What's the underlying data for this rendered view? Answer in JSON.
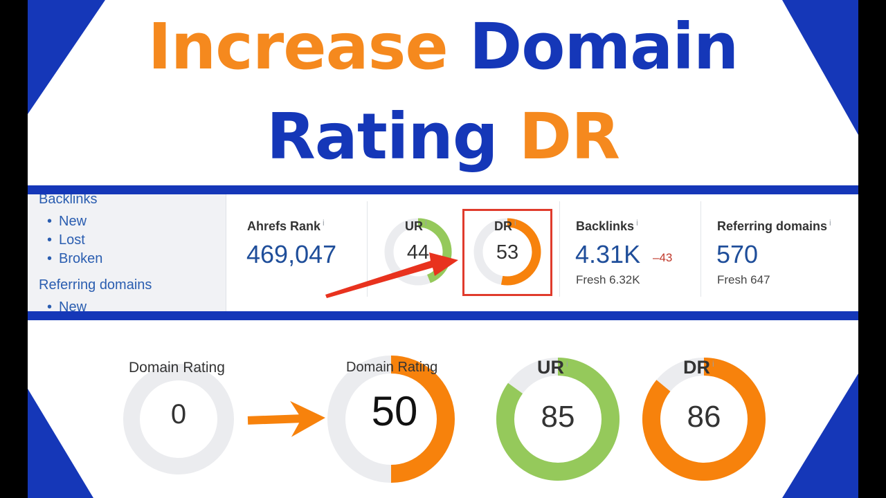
{
  "title": {
    "line1_orange": "Increase",
    "line1_blue": "Domain",
    "line2_blue": "Rating",
    "line2_orange": "DR"
  },
  "colors": {
    "brand_blue": "#1537b8",
    "brand_orange": "#f5891e",
    "gauge_orange": "#f7820c",
    "gauge_green": "#95c95b",
    "gauge_track": "#ebecef",
    "link_blue": "#2a5db0",
    "highlight_red": "#e03b2c"
  },
  "sidebar": {
    "section1": "Backlinks",
    "items1": [
      "New",
      "Lost",
      "Broken"
    ],
    "section2": "Referring domains",
    "items2": [
      "New"
    ]
  },
  "metrics": {
    "ahrefs_rank": {
      "label": "Ahrefs Rank",
      "info": "i",
      "value": "469,047"
    },
    "ur": {
      "label": "UR",
      "info": "i",
      "value": "44",
      "fill": 0.44
    },
    "dr": {
      "label": "DR",
      "info": "i",
      "value": "53",
      "fill": 0.53
    },
    "backlinks": {
      "label": "Backlinks",
      "info": "i",
      "value": "4.31K",
      "delta": "–43",
      "fresh": "Fresh 6.32K"
    },
    "referring_domains": {
      "label": "Referring domains",
      "info": "i",
      "value": "570",
      "fresh": "Fresh 647"
    }
  },
  "gauges": [
    {
      "label": "Domain Rating",
      "value": "0",
      "fill": 0.0,
      "color": "#f7820c"
    },
    {
      "label": "Domain Rating",
      "value": "50",
      "fill": 0.5,
      "color": "#f7820c"
    },
    {
      "label": "UR",
      "info": "i",
      "value": "85",
      "fill": 0.85,
      "color": "#95c95b"
    },
    {
      "label": "DR",
      "info": "i",
      "value": "86",
      "fill": 0.86,
      "color": "#f7820c"
    }
  ]
}
